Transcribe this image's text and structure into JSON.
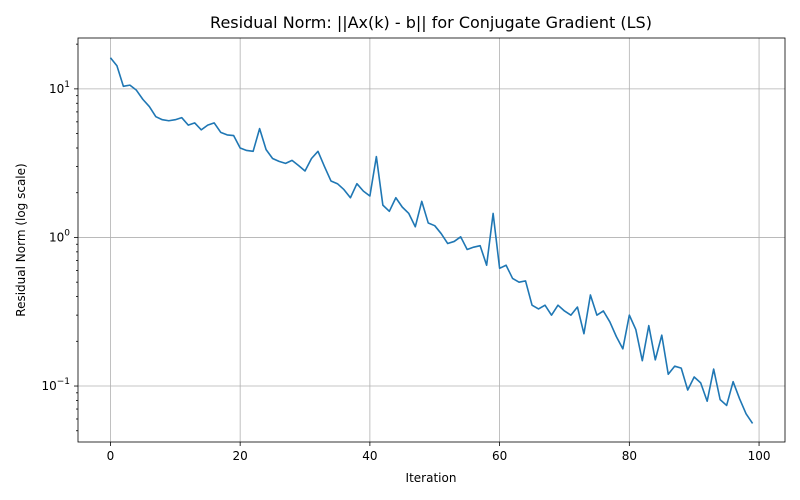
{
  "chart_data": {
    "type": "line",
    "title": "Residual Norm: ||Ax(k) - b|| for Conjugate Gradient (LS)",
    "xlabel": "Iteration",
    "ylabel": "Residual Norm (log scale)",
    "xlim": [
      -5,
      104
    ],
    "ylim": [
      0.042,
      22
    ],
    "yscale": "log",
    "grid": true,
    "x_ticks": [
      0,
      20,
      40,
      60,
      80,
      100
    ],
    "y_ticks": [
      {
        "value": 0.1,
        "base": "10",
        "exp": "−1"
      },
      {
        "value": 1,
        "base": "10",
        "exp": "0"
      },
      {
        "value": 10,
        "base": "10",
        "exp": "1"
      }
    ],
    "line_color": "#1f77b4",
    "series": [
      {
        "x": [
          0,
          1,
          2,
          3,
          4,
          5,
          6,
          7,
          8,
          9,
          10,
          11,
          12,
          13,
          14,
          15,
          16,
          17,
          18,
          19,
          20,
          21,
          22,
          23,
          24,
          25,
          26,
          27,
          28,
          29,
          30,
          31,
          32,
          33,
          34,
          35,
          36,
          37,
          38,
          39,
          40,
          41,
          42,
          43,
          44,
          45,
          46,
          47,
          48,
          49,
          50,
          51,
          52,
          53,
          54,
          55,
          56,
          57,
          58,
          59,
          60,
          61,
          62,
          63,
          64,
          65,
          66,
          67,
          68,
          69,
          70,
          71,
          72,
          73,
          74,
          75,
          76,
          77,
          78,
          79,
          80,
          81,
          82,
          83,
          84,
          85,
          86,
          87,
          88,
          89,
          90,
          91,
          92,
          93,
          94,
          95,
          96,
          97,
          98,
          99
        ],
        "values": [
          16.2,
          14.3,
          10.4,
          10.6,
          9.8,
          8.5,
          7.6,
          6.5,
          6.2,
          6.1,
          6.2,
          6.4,
          5.7,
          5.9,
          5.3,
          5.7,
          5.9,
          5.1,
          4.9,
          4.85,
          4.0,
          3.85,
          3.8,
          5.4,
          3.9,
          3.4,
          3.25,
          3.15,
          3.3,
          3.05,
          2.8,
          3.4,
          3.8,
          3.0,
          2.4,
          2.3,
          2.1,
          1.85,
          2.3,
          2.05,
          1.9,
          3.5,
          1.65,
          1.5,
          1.85,
          1.6,
          1.45,
          1.18,
          1.75,
          1.25,
          1.2,
          1.06,
          0.91,
          0.94,
          1.01,
          0.83,
          0.86,
          0.88,
          0.65,
          1.45,
          0.62,
          0.65,
          0.53,
          0.5,
          0.51,
          0.35,
          0.33,
          0.35,
          0.3,
          0.35,
          0.32,
          0.3,
          0.34,
          0.225,
          0.41,
          0.3,
          0.32,
          0.27,
          0.215,
          0.178,
          0.3,
          0.24,
          0.148,
          0.255,
          0.15,
          0.22,
          0.12,
          0.136,
          0.132,
          0.094,
          0.115,
          0.105,
          0.079,
          0.13,
          0.081,
          0.074,
          0.107,
          0.082,
          0.065,
          0.056
        ]
      }
    ]
  }
}
